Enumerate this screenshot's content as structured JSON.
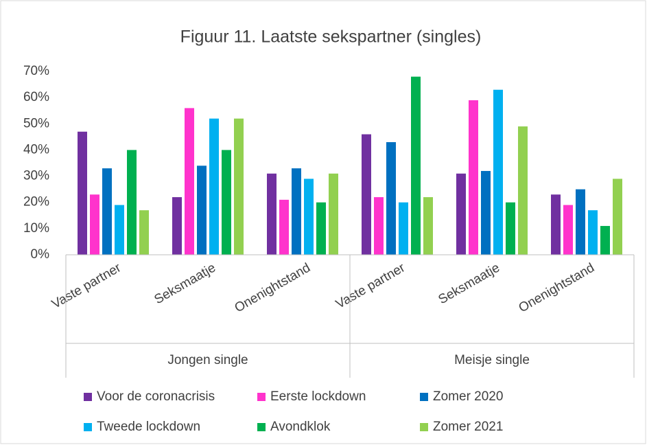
{
  "chart_data": {
    "type": "bar",
    "title": "Figuur 11. Laatste sekspartner (singles)",
    "categories": [
      "Vaste partner",
      "Seksmaatje",
      "Onenightstand",
      "Vaste partner",
      "Seksmaatje",
      "Onenightstand"
    ],
    "groups": [
      "Jongen single",
      "Meisje single"
    ],
    "series": [
      {
        "name": "Voor de coronacrisis",
        "color": "#7030a0",
        "values": [
          47,
          22,
          31,
          46,
          31,
          23
        ]
      },
      {
        "name": "Eerste lockdown",
        "color": "#ff33cc",
        "values": [
          23,
          56,
          21,
          22,
          59,
          19
        ]
      },
      {
        "name": "Zomer 2020",
        "color": "#0070c0",
        "values": [
          33,
          34,
          33,
          43,
          32,
          25
        ]
      },
      {
        "name": "Tweede lockdown",
        "color": "#00b0f0",
        "values": [
          19,
          52,
          29,
          20,
          63,
          17
        ]
      },
      {
        "name": "Avondklok",
        "color": "#00b050",
        "values": [
          40,
          40,
          20,
          68,
          20,
          11
        ]
      },
      {
        "name": "Zomer 2021",
        "color": "#92d050",
        "values": [
          17,
          52,
          31,
          22,
          49,
          29
        ]
      }
    ],
    "ylim": [
      0,
      70
    ],
    "yticks": [
      {
        "value": 0,
        "label": "0%"
      },
      {
        "value": 10,
        "label": "10%"
      },
      {
        "value": 20,
        "label": "20%"
      },
      {
        "value": 30,
        "label": "30%"
      },
      {
        "value": 40,
        "label": "40%"
      },
      {
        "value": 50,
        "label": "50%"
      },
      {
        "value": 60,
        "label": "60%"
      },
      {
        "value": 70,
        "label": "70%"
      }
    ],
    "grid": false,
    "legend": "bottom"
  }
}
